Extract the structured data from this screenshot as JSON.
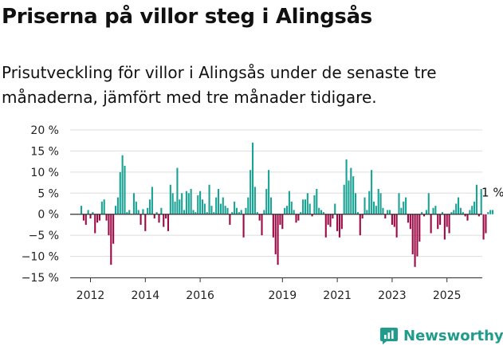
{
  "header": {
    "title": "Priserna på villor steg i Alingsås",
    "subtitle": "Prisutveckling för villor i Alingsås under de senaste tre månaderna, jämfört med tre månader tidigare."
  },
  "brand": {
    "name": "Newsworthy",
    "icon": "newsworthy-logo-icon",
    "color": "#1f9c8c"
  },
  "colors": {
    "positive": "#1aa394",
    "negative": "#9c0a46"
  },
  "chart_data": {
    "type": "bar",
    "x_start": "2011-09",
    "x_step": "month",
    "ylim": [
      -15,
      20
    ],
    "yticks": [
      -15,
      -10,
      -5,
      0,
      5,
      10,
      15,
      20
    ],
    "ytick_labels": [
      "−15 %",
      "−10 %",
      "−5 %",
      "0 %",
      "5 %",
      "10 %",
      "15 %",
      "20 %"
    ],
    "xtick_labels": [
      "2012",
      "2014",
      "2016",
      "2019",
      "2021",
      "2023",
      "2025"
    ],
    "xtick_months": [
      "2012-01",
      "2014-01",
      "2016-01",
      "2019-01",
      "2021-01",
      "2023-01",
      "2025-01"
    ],
    "annotation": "1 %",
    "values": [
      2,
      -1.5,
      -2.5,
      1,
      -1,
      0.5,
      -4.5,
      -2,
      -1.5,
      3,
      3.5,
      -1.5,
      -5,
      -12,
      -7,
      2,
      4,
      10,
      14,
      11.5,
      0.5,
      1,
      0,
      5,
      3,
      1,
      -2.5,
      1.2,
      -4,
      1.5,
      3.5,
      6.5,
      -1,
      0.5,
      -2,
      1.5,
      -3,
      -1,
      -4,
      7,
      5,
      3,
      11,
      3.5,
      5,
      1,
      5.5,
      5,
      6,
      1,
      0.5,
      4.5,
      5.5,
      3.5,
      2.5,
      0.5,
      7,
      2,
      0.5,
      4,
      6,
      2.5,
      4,
      2,
      1.5,
      -2.5,
      0.5,
      3,
      1.5,
      0.5,
      1,
      -5.5,
      1.5,
      4,
      10.5,
      17,
      6.5,
      0.5,
      -1.5,
      -5,
      1,
      6,
      10.5,
      4,
      -5.5,
      -9.5,
      -12,
      -2.5,
      -3.5,
      1.5,
      2,
      5.5,
      3,
      1,
      -2,
      -1.5,
      0.5,
      3.5,
      3.5,
      5,
      2.5,
      -0.5,
      4.5,
      6,
      1.5,
      1,
      0.5,
      -5.5,
      -2.5,
      -3,
      -1,
      2.5,
      -4,
      -5.5,
      -3.5,
      7,
      13,
      8,
      11,
      9,
      5,
      0.5,
      -5,
      -1,
      4,
      1,
      5.5,
      10.5,
      3,
      2,
      6,
      5,
      1.5,
      -1,
      1,
      1,
      -2.5,
      -3,
      -5.5,
      5,
      1.5,
      3,
      4,
      -2,
      -3.5,
      -9.5,
      -12.5,
      -10,
      -6.5,
      0.5,
      -0.5,
      1,
      5,
      -4.5,
      1.5,
      2,
      -3.5,
      -2.5,
      0.5,
      -6,
      -3,
      -4.5,
      0.5,
      1,
      2.5,
      4,
      1.5,
      0.5,
      -0.5,
      -1.5,
      1,
      2,
      3,
      7,
      -0.5,
      6,
      -6,
      -4.5,
      0.5,
      1,
      1
    ]
  }
}
